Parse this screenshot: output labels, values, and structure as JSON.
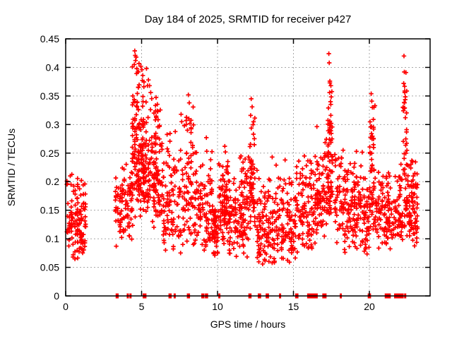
{
  "window": {
    "background": "#ffffff"
  },
  "chart_data": {
    "type": "scatter",
    "title": "Day 184 of 2025, SRMTID for receiver p427",
    "xlabel": "GPS time / hours",
    "ylabel": "SRMTID / TECUs",
    "xlim": [
      0,
      24
    ],
    "ylim": [
      0,
      0.45
    ],
    "xticks": [
      0,
      5,
      10,
      15,
      20
    ],
    "xtick_labels": [
      "0",
      "5",
      "10",
      "15",
      "20"
    ],
    "yticks": [
      0,
      0.05,
      0.1,
      0.15,
      0.2,
      0.25,
      0.3,
      0.35,
      0.4,
      0.45
    ],
    "ytick_labels": [
      "0",
      "0.05",
      "0.1",
      "0.15",
      "0.2",
      "0.25",
      "0.3",
      "0.35",
      "0.4",
      "0.45"
    ],
    "grid": true,
    "legend": "none",
    "marker": {
      "glyph": "+",
      "color": "#ff0000",
      "size": 7
    },
    "grid_color": "#a8a8a8",
    "axis_color": "#000000",
    "seed": 7,
    "clusters": [
      {
        "x0": 0.05,
        "x1": 1.35,
        "n": 135,
        "y_lo": 0.06,
        "y_mode": 0.105,
        "y_hi": 0.215
      },
      {
        "x0": 3.25,
        "x1": 4.4,
        "n": 90,
        "y_lo": 0.08,
        "y_mode": 0.155,
        "y_hi": 0.235
      },
      {
        "x0": 4.35,
        "x1": 5.15,
        "n": 150,
        "y_lo": 0.115,
        "y_mode": 0.21,
        "y_hi": 0.425
      },
      {
        "x0": 5.1,
        "x1": 6.4,
        "n": 170,
        "y_lo": 0.115,
        "y_mode": 0.2,
        "y_hi": 0.385
      },
      {
        "x0": 6.4,
        "x1": 7.9,
        "n": 115,
        "y_lo": 0.07,
        "y_mode": 0.13,
        "y_hi": 0.315
      },
      {
        "x0": 7.9,
        "x1": 8.45,
        "n": 55,
        "y_lo": 0.08,
        "y_mode": 0.15,
        "y_hi": 0.345
      },
      {
        "x0": 8.45,
        "x1": 9.7,
        "n": 105,
        "y_lo": 0.07,
        "y_mode": 0.12,
        "y_hi": 0.3
      },
      {
        "x0": 9.7,
        "x1": 10.05,
        "n": 45,
        "y_lo": 0.065,
        "y_mode": 0.1,
        "y_hi": 0.185
      },
      {
        "x0": 10.05,
        "x1": 10.75,
        "n": 90,
        "y_lo": 0.085,
        "y_mode": 0.14,
        "y_hi": 0.265
      },
      {
        "x0": 10.75,
        "x1": 11.4,
        "n": 55,
        "y_lo": 0.065,
        "y_mode": 0.11,
        "y_hi": 0.215
      },
      {
        "x0": 11.4,
        "x1": 12.1,
        "n": 75,
        "y_lo": 0.065,
        "y_mode": 0.14,
        "y_hi": 0.27
      },
      {
        "x0": 12.1,
        "x1": 12.5,
        "n": 55,
        "y_lo": 0.08,
        "y_mode": 0.17,
        "y_hi": 0.33
      },
      {
        "x0": 12.55,
        "x1": 15.3,
        "n": 235,
        "y_lo": 0.048,
        "y_mode": 0.095,
        "y_hi": 0.235
      },
      {
        "x0": 15.3,
        "x1": 16.5,
        "n": 105,
        "y_lo": 0.07,
        "y_mode": 0.12,
        "y_hi": 0.265
      },
      {
        "x0": 16.5,
        "x1": 17.25,
        "n": 80,
        "y_lo": 0.09,
        "y_mode": 0.16,
        "y_hi": 0.3
      },
      {
        "x0": 17.25,
        "x1": 17.6,
        "n": 70,
        "y_lo": 0.12,
        "y_mode": 0.2,
        "y_hi": 0.42
      },
      {
        "x0": 17.7,
        "x1": 19.6,
        "n": 170,
        "y_lo": 0.06,
        "y_mode": 0.16,
        "y_hi": 0.27
      },
      {
        "x0": 19.6,
        "x1": 20.0,
        "n": 40,
        "y_lo": 0.065,
        "y_mode": 0.12,
        "y_hi": 0.22
      },
      {
        "x0": 20.0,
        "x1": 20.45,
        "n": 60,
        "y_lo": 0.09,
        "y_mode": 0.15,
        "y_hi": 0.35
      },
      {
        "x0": 20.45,
        "x1": 21.9,
        "n": 115,
        "y_lo": 0.08,
        "y_mode": 0.13,
        "y_hi": 0.23
      },
      {
        "x0": 21.9,
        "x1": 22.2,
        "n": 35,
        "y_lo": 0.09,
        "y_mode": 0.13,
        "y_hi": 0.25
      },
      {
        "x0": 22.2,
        "x1": 22.5,
        "n": 45,
        "y_lo": 0.1,
        "y_mode": 0.16,
        "y_hi": 0.41
      },
      {
        "x0": 22.45,
        "x1": 23.2,
        "n": 85,
        "y_lo": 0.08,
        "y_mode": 0.14,
        "y_hi": 0.265
      }
    ],
    "peak_points": [
      [
        4.52,
        0.405
      ],
      [
        4.55,
        0.429
      ],
      [
        4.58,
        0.421
      ],
      [
        4.6,
        0.412
      ],
      [
        4.64,
        0.418
      ],
      [
        4.68,
        0.398
      ],
      [
        4.75,
        0.392
      ],
      [
        4.95,
        0.402
      ],
      [
        5.02,
        0.396
      ],
      [
        5.08,
        0.386
      ],
      [
        5.32,
        0.398
      ],
      [
        5.45,
        0.378
      ],
      [
        5.52,
        0.368
      ],
      [
        5.6,
        0.356
      ],
      [
        8.02,
        0.29
      ],
      [
        8.08,
        0.352
      ],
      [
        8.14,
        0.338
      ],
      [
        8.18,
        0.302
      ],
      [
        12.18,
        0.316
      ],
      [
        12.22,
        0.345
      ],
      [
        12.28,
        0.331
      ],
      [
        17.3,
        0.329
      ],
      [
        17.33,
        0.424
      ],
      [
        17.36,
        0.408
      ],
      [
        17.38,
        0.356
      ],
      [
        17.4,
        0.376
      ],
      [
        17.44,
        0.34
      ],
      [
        20.12,
        0.354
      ],
      [
        20.16,
        0.341
      ],
      [
        20.2,
        0.33
      ],
      [
        20.26,
        0.309
      ],
      [
        22.24,
        0.324
      ],
      [
        22.26,
        0.372
      ],
      [
        22.28,
        0.42
      ],
      [
        22.3,
        0.392
      ],
      [
        22.31,
        0.338
      ],
      [
        22.33,
        0.356
      ],
      [
        10.48,
        0.262
      ],
      [
        10.52,
        0.252
      ],
      [
        7.6,
        0.318
      ],
      [
        7.64,
        0.305
      ],
      [
        13.6,
        0.243
      ],
      [
        14.45,
        0.238
      ],
      [
        0.3,
        0.21
      ],
      [
        0.35,
        0.195
      ]
    ],
    "zero_marks": [
      3.36,
      3.42,
      4.09,
      4.27,
      5.14,
      5.25,
      6.84,
      6.91,
      7.18,
      8.05,
      8.12,
      9.0,
      9.07,
      9.24,
      9.31,
      10.12,
      12.1,
      12.17,
      12.72,
      12.8,
      13.24,
      13.32,
      14.12,
      15.18,
      15.26,
      15.97,
      16.04,
      16.11,
      16.18,
      16.25,
      16.32,
      16.39,
      16.46,
      16.53,
      16.97,
      17.04,
      17.11,
      18.12,
      19.96,
      20.04,
      21.08,
      21.21,
      21.34,
      21.7,
      21.77,
      21.84,
      21.91,
      21.98,
      22.05,
      22.12,
      22.19,
      22.36
    ]
  }
}
